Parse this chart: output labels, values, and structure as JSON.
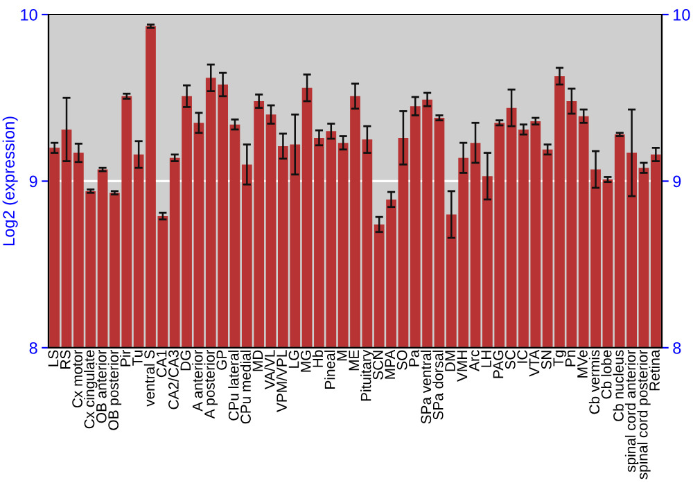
{
  "chart_data": {
    "type": "bar",
    "ylabel": "Log2 (expression)",
    "categories": [
      "LS",
      "RS",
      "Cx motor",
      "Cx cingulate",
      "OB anterior",
      "OB posterior",
      "Pir",
      "Tu",
      "ventral S",
      "CA1",
      "CA2/CA3",
      "DG",
      "A anterior",
      "A posterior",
      "GP",
      "CPu lateral",
      "CPu medial",
      "MD",
      "VA/VL",
      "VPM/VPL",
      "LG",
      "MG",
      "Hb",
      "Pineal",
      "M",
      "ME",
      "Pituitary",
      "SCN",
      "MPA",
      "SO",
      "Pa",
      "SPa ventral",
      "SPa dorsal",
      "DM",
      "VMH",
      "Arc",
      "LH",
      "PAG",
      "SC",
      "IC",
      "VTA",
      "SN",
      "Tg",
      "Pn",
      "MVe",
      "Cb vermis",
      "Cb lobe",
      "Cb nucleus",
      "spinal cord anterior",
      "spinal cord posterior",
      "Retina"
    ],
    "series": [
      {
        "color": "#b83434",
        "values": [
          9.2,
          9.31,
          9.17,
          8.94,
          9.07,
          8.93,
          9.51,
          9.16,
          9.93,
          8.79,
          9.14,
          9.51,
          9.35,
          9.62,
          9.58,
          9.34,
          9.1,
          9.48,
          9.4,
          9.21,
          9.22,
          9.56,
          9.26,
          9.3,
          9.23,
          9.51,
          9.25,
          8.74,
          8.89,
          9.26,
          9.45,
          9.49,
          9.38,
          8.8,
          9.14,
          9.23,
          9.03,
          9.35,
          9.44,
          9.31,
          9.36,
          9.19,
          9.63,
          9.48,
          9.39,
          9.07,
          9.01,
          9.28,
          9.17,
          9.08,
          9.16
        ],
        "errors": [
          0.03,
          0.19,
          0.055,
          0.01,
          0.01,
          0.01,
          0.015,
          0.08,
          0.01,
          0.02,
          0.02,
          0.065,
          0.06,
          0.08,
          0.07,
          0.03,
          0.12,
          0.04,
          0.055,
          0.075,
          0.18,
          0.08,
          0.045,
          0.045,
          0.04,
          0.075,
          0.08,
          0.045,
          0.045,
          0.16,
          0.055,
          0.04,
          0.015,
          0.14,
          0.09,
          0.12,
          0.14,
          0.015,
          0.11,
          0.03,
          0.02,
          0.03,
          0.05,
          0.075,
          0.04,
          0.11,
          0.015,
          0.01,
          0.26,
          0.03,
          0.04
        ]
      }
    ],
    "ylim": [
      8,
      10
    ],
    "yticks": [
      8,
      9,
      10
    ],
    "y2lim": [
      8,
      10
    ],
    "y2ticks": [
      8,
      9,
      10
    ],
    "grid": "y"
  }
}
